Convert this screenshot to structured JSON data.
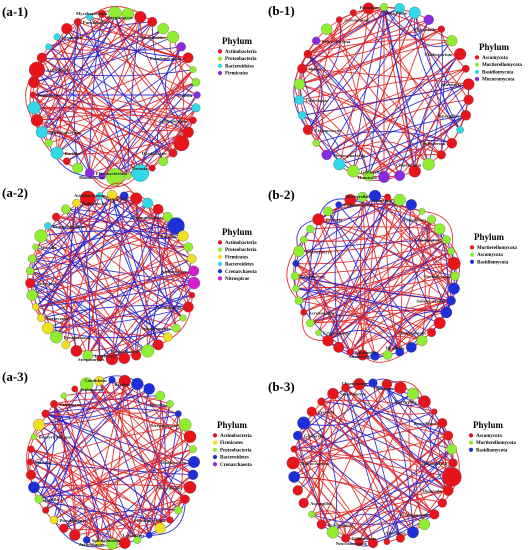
{
  "panels": [
    {
      "id": "(a-1)",
      "legend_title": "Phylum",
      "legend": [
        {
          "label": "Actinobacteria",
          "color": "#e8141c"
        },
        {
          "label": "Proteobacteria",
          "color": "#90ee30"
        },
        {
          "label": "Bacteroidetes",
          "color": "#30d8e8"
        },
        {
          "label": "Firmicutes",
          "color": "#8a2be2"
        }
      ],
      "node_labels": [
        "Mycobacterium",
        "Streptomyces",
        "Nocardioides",
        "Pseudonocardia",
        "Gaiella",
        "Sphingomonas",
        "Dyadobacter",
        "Devosia",
        "Rhodococcus",
        "Flavobacterium",
        "Bacillus",
        "Microbacterium",
        "Pedobacter",
        "Arthrobacter",
        "Lysobacter",
        "Paenibacillus"
      ],
      "node_count": 40,
      "node_colors": [
        "#e8141c",
        "#90ee30",
        "#30d8e8",
        "#8a2be2"
      ],
      "node_weights": [
        12,
        10,
        5,
        3
      ]
    },
    {
      "id": "(b-1)",
      "legend_title": "Phylum",
      "legend": [
        {
          "label": "Ascomycota",
          "color": "#e8141c"
        },
        {
          "label": "Mortierellomycota",
          "color": "#90ee30"
        },
        {
          "label": "Basidiomycota",
          "color": "#30d8e8"
        },
        {
          "label": "Mucoromycota",
          "color": "#8a2be2"
        }
      ],
      "node_labels": [
        "Fusarium",
        "Penicillium",
        "Mortierella",
        "Cladosporium",
        "Alternaria",
        "Aspergillus",
        "Trichoderma",
        "Chaetomium",
        "Humicola",
        "Gibberella",
        "Plectosphaerella",
        "Cryptococcus",
        "Umbelopsis",
        "Mucor",
        "Solicoccozyma",
        "Acremonium"
      ],
      "node_count": 34,
      "node_colors": [
        "#e8141c",
        "#90ee30",
        "#30d8e8",
        "#8a2be2"
      ],
      "node_weights": [
        14,
        6,
        6,
        2
      ]
    },
    {
      "id": "(a-2)",
      "legend_title": "Phylum",
      "legend": [
        {
          "label": "Actinobacteria",
          "color": "#e8141c"
        },
        {
          "label": "Proteobacteria",
          "color": "#90ee30"
        },
        {
          "label": "Firmicutes",
          "color": "#f0e020"
        },
        {
          "label": "Bacteroidetes",
          "color": "#30d8e8"
        },
        {
          "label": "Crenarchaeota",
          "color": "#1c2fd8"
        },
        {
          "label": "Nitrospirae",
          "color": "#d020d0"
        }
      ],
      "node_labels": [
        "Acidobacterium",
        "Candidatus",
        "Gemmatimonas",
        "Bacillus",
        "Arthrobacter",
        "Nocardioides",
        "Sphingomonas",
        "Flavisolibacter",
        "Streptomyces",
        "Lysobacter",
        "Pseudomonas",
        "Variovorax",
        "Nitrospira",
        "Massilia",
        "Bradyrhizobium",
        "Rubrobacter"
      ],
      "node_count": 42,
      "node_colors": [
        "#e8141c",
        "#90ee30",
        "#f0e020",
        "#30d8e8",
        "#1c2fd8",
        "#d020d0"
      ],
      "node_weights": [
        10,
        12,
        6,
        4,
        2,
        1
      ]
    },
    {
      "id": "(b-2)",
      "legend_title": "Phylum",
      "legend": [
        {
          "label": "Mortierellomycota",
          "color": "#e8141c"
        },
        {
          "label": "Ascomycota",
          "color": "#90ee30"
        },
        {
          "label": "Basidiomycota",
          "color": "#1c2fd8"
        }
      ],
      "node_labels": [
        "Mortierella",
        "Fusarium",
        "Penicillium",
        "Chaetomium",
        "Trichoderma",
        "Solicoccozyma",
        "Cladosporium",
        "Humicola",
        "Alternaria",
        "Gibberella",
        "Cryptococcus",
        "Acremonium",
        "Talaromyces",
        "Stachybotrys",
        "Preussia",
        "Vishniacozyma"
      ],
      "node_count": 40,
      "node_colors": [
        "#e8141c",
        "#90ee30",
        "#1c2fd8"
      ],
      "node_weights": [
        6,
        14,
        5
      ]
    },
    {
      "id": "(a-3)",
      "legend_title": "Phylum",
      "legend": [
        {
          "label": "Actinobacteria",
          "color": "#e8141c"
        },
        {
          "label": "Firmicutes",
          "color": "#f0e020"
        },
        {
          "label": "Proteobacteria",
          "color": "#90ee30"
        },
        {
          "label": "Bacteroidetes",
          "color": "#1c2fd8"
        },
        {
          "label": "Crenarchaeota",
          "color": "#8a2be2"
        }
      ],
      "node_labels": [
        "Candidatus",
        "Bacillus",
        "Devosia",
        "Streptomyces",
        "Rhodococcus",
        "Nocardioides",
        "Flavobacterium",
        "Lysobacter",
        "Arthrobacter",
        "Sphingomonas",
        "Pseudomonas",
        "Gaiella",
        "Massilia",
        "Bradyrhizobium",
        "Variovorax",
        "Acidovorax"
      ],
      "node_count": 40,
      "node_colors": [
        "#e8141c",
        "#f0e020",
        "#90ee30",
        "#1c2fd8",
        "#8a2be2"
      ],
      "node_weights": [
        10,
        4,
        10,
        6,
        2
      ]
    },
    {
      "id": "(b-3)",
      "legend_title": "Phylum",
      "legend": [
        {
          "label": "Ascomycota",
          "color": "#e8141c"
        },
        {
          "label": "Mortierellomycota",
          "color": "#90ee30"
        },
        {
          "label": "Basidiomycota",
          "color": "#1c2fd8"
        }
      ],
      "node_labels": [
        "Chaetomium",
        "Fusarium",
        "Mortierella",
        "Penicillium",
        "Trichoderma",
        "Humicola",
        "Cladosporium",
        "Alternaria",
        "Neocosmospora",
        "Talaromyces",
        "Acremonium",
        "Aspergillus",
        "Solicoccozyma",
        "Gibberella",
        "Preussia",
        "Stachybotrys"
      ],
      "node_count": 36,
      "node_colors": [
        "#e8141c",
        "#90ee30",
        "#1c2fd8"
      ],
      "node_weights": [
        16,
        3,
        4
      ]
    }
  ],
  "edge_colors": {
    "positive": "#e02020",
    "negative": "#2020d0"
  }
}
